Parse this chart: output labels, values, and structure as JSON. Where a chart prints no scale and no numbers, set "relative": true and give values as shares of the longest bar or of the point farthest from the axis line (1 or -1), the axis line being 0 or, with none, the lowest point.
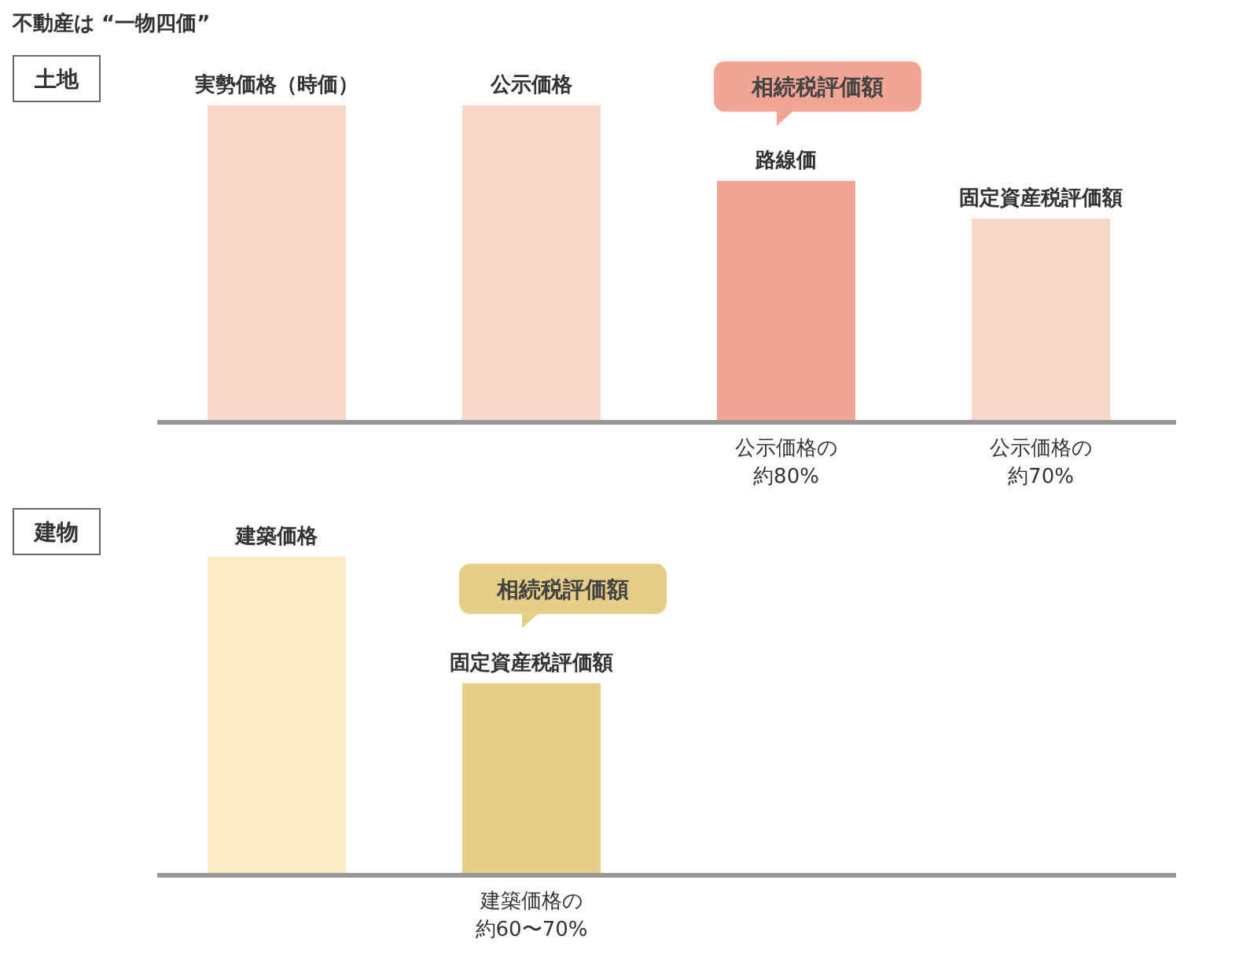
{
  "chart_data": [
    {
      "type": "bar",
      "title": "不動産は “一物四価”",
      "subtitle": "土地",
      "relative": true,
      "categories": [
        "実勢価格（時価）",
        "公示価格",
        "路線価",
        "固定資産税評価額"
      ],
      "values": [
        1,
        1,
        0.76,
        0.64
      ],
      "colors": [
        "#f9d6ca",
        "#f9d6ca",
        "#f3a594",
        "#f9d6ca"
      ],
      "annotations": [
        "相続税評価額",
        "公示価格の約80%",
        "公示価格の約70%"
      ]
    },
    {
      "type": "bar",
      "subtitle": "建物",
      "relative": true,
      "categories": [
        "建築価格",
        "固定資産税評価額",
        null,
        null
      ],
      "values": [
        1,
        0.6,
        null,
        null
      ],
      "colors": [
        "#faecc6",
        "#e6ce86",
        null,
        null
      ],
      "annotations": [
        "相続税評価額",
        "建築価格の約60〜70%"
      ]
    }
  ]
}
